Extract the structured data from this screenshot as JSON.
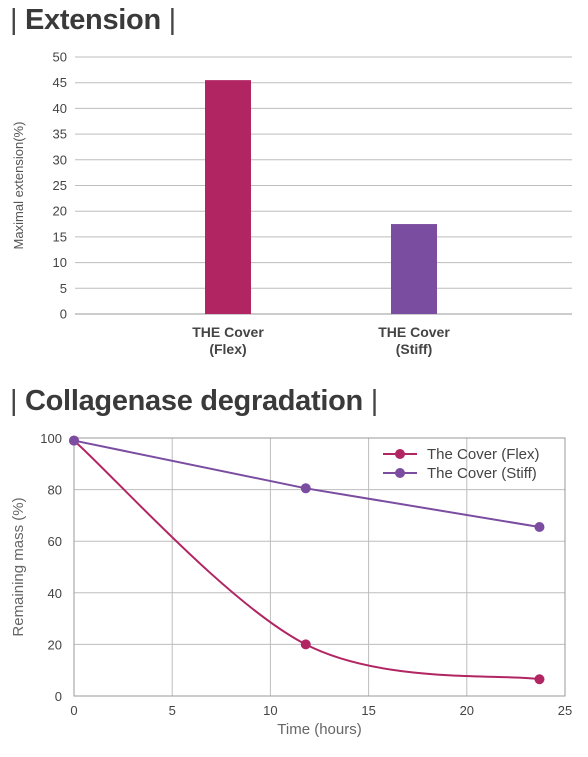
{
  "extension": {
    "title": "Extension"
  },
  "degradation": {
    "title": "Collagenase degradation"
  },
  "chart_data": [
    {
      "type": "bar",
      "title": "Extension",
      "categories": [
        [
          "THE Cover",
          "(Flex)"
        ],
        [
          "THE Cover",
          "(Stiff)"
        ]
      ],
      "values": [
        45.5,
        17.5
      ],
      "colors": [
        "#b22563",
        "#7b4da0"
      ],
      "ylabel": "Maximal extension(%)",
      "xlabel": "",
      "ylim": [
        0,
        50
      ],
      "yticks": [
        0,
        5,
        10,
        15,
        20,
        25,
        30,
        35,
        40,
        45,
        50
      ],
      "grid": "horizontal"
    },
    {
      "type": "line",
      "title": "Collagenase degradation",
      "xlabel": "Time (hours)",
      "ylabel": "Remaining mass (%)",
      "xlim": [
        0,
        25
      ],
      "ylim": [
        0,
        100
      ],
      "xticks": [
        0,
        5,
        10,
        15,
        20,
        25
      ],
      "yticks": [
        0,
        20,
        40,
        60,
        80,
        100
      ],
      "grid": "both",
      "legend": "top-right",
      "series": [
        {
          "name": "The Cover (Flex)",
          "color": "#b22563",
          "x": [
            0,
            11.8,
            23.7
          ],
          "y": [
            99,
            20,
            6.5
          ]
        },
        {
          "name": "The Cover (Stiff)",
          "color": "#7b4da0",
          "x": [
            0,
            11.8,
            23.7
          ],
          "y": [
            99,
            80.5,
            65.5
          ]
        }
      ]
    }
  ]
}
